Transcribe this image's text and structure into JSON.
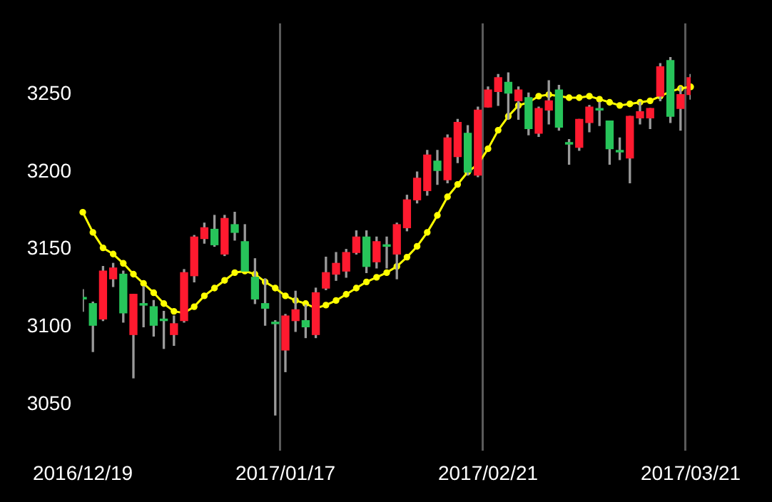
{
  "chart_data": {
    "type": "candlestick",
    "categories": [
      "2016/12/19",
      null,
      null,
      null,
      null,
      null,
      null,
      null,
      null,
      null,
      null,
      null,
      null,
      null,
      null,
      null,
      null,
      null,
      null,
      null,
      "2017/01/17",
      null,
      null,
      null,
      null,
      null,
      null,
      null,
      null,
      null,
      null,
      null,
      null,
      null,
      null,
      null,
      null,
      null,
      null,
      null,
      "2017/02/21",
      null,
      null,
      null,
      null,
      null,
      null,
      null,
      null,
      null,
      null,
      null,
      null,
      null,
      null,
      null,
      null,
      null,
      null,
      null,
      "2017/03/21"
    ],
    "ohlc": [
      [
        3119,
        3124,
        3110,
        3118
      ],
      [
        3115,
        3116,
        3084,
        3101
      ],
      [
        3105,
        3139,
        3104,
        3136
      ],
      [
        3131,
        3141,
        3126,
        3138
      ],
      [
        3134,
        3136,
        3103,
        3109
      ],
      [
        3095,
        3121,
        3067,
        3121
      ],
      [
        3115,
        3126,
        3100,
        3114
      ],
      [
        3113,
        3117,
        3094,
        3101
      ],
      [
        3105,
        3110,
        3086,
        3104
      ],
      [
        3095,
        3107,
        3088,
        3102
      ],
      [
        3104,
        3137,
        3103,
        3135
      ],
      [
        3133,
        3159,
        3129,
        3158
      ],
      [
        3157,
        3167,
        3154,
        3164
      ],
      [
        3163,
        3172,
        3152,
        3153
      ],
      [
        3147,
        3172,
        3146,
        3170
      ],
      [
        3166,
        3174,
        3156,
        3161
      ],
      [
        3155,
        3166,
        3136,
        3136
      ],
      [
        3132,
        3144,
        3115,
        3118
      ],
      [
        3115,
        3131,
        3101,
        3112
      ],
      [
        3103,
        3104,
        3043,
        3102
      ],
      [
        3085,
        3108,
        3071,
        3107
      ],
      [
        3104,
        3123,
        3097,
        3111
      ],
      [
        3104,
        3114,
        3093,
        3100
      ],
      [
        3095,
        3125,
        3093,
        3122
      ],
      [
        3125,
        3145,
        3124,
        3135
      ],
      [
        3134,
        3148,
        3130,
        3141
      ],
      [
        3136,
        3150,
        3132,
        3148
      ],
      [
        3148,
        3162,
        3147,
        3158
      ],
      [
        3158,
        3162,
        3135,
        3139
      ],
      [
        3142,
        3158,
        3138,
        3155
      ],
      [
        3153,
        3158,
        3138,
        3152
      ],
      [
        3147,
        3167,
        3131,
        3166
      ],
      [
        3164,
        3185,
        3162,
        3182
      ],
      [
        3182,
        3200,
        3180,
        3196
      ],
      [
        3188,
        3214,
        3185,
        3211
      ],
      [
        3207,
        3214,
        3192,
        3201
      ],
      [
        3195,
        3224,
        3193,
        3222
      ],
      [
        3210,
        3234,
        3206,
        3232
      ],
      [
        3225,
        3230,
        3198,
        3200
      ],
      [
        3198,
        3242,
        3197,
        3240
      ],
      [
        3242,
        3255,
        3242,
        3253
      ],
      [
        3252,
        3263,
        3243,
        3261
      ],
      [
        3258,
        3264,
        3234,
        3251
      ],
      [
        3246,
        3255,
        3234,
        3253
      ],
      [
        3248,
        3251,
        3224,
        3228
      ],
      [
        3225,
        3242,
        3223,
        3241
      ],
      [
        3240,
        3259,
        3231,
        3246
      ],
      [
        3253,
        3256,
        3227,
        3229
      ],
      [
        3219,
        3221,
        3205,
        3218
      ],
      [
        3216,
        3234,
        3214,
        3234
      ],
      [
        3232,
        3243,
        3226,
        3242
      ],
      [
        3241,
        3245,
        3230,
        3240
      ],
      [
        3233,
        3233,
        3205,
        3215
      ],
      [
        3214,
        3222,
        3208,
        3213
      ],
      [
        3209,
        3236,
        3193,
        3236
      ],
      [
        3235,
        3245,
        3231,
        3239
      ],
      [
        3235,
        3241,
        3228,
        3241
      ],
      [
        3249,
        3270,
        3246,
        3268
      ],
      [
        3272,
        3274,
        3232,
        3236
      ],
      [
        3241,
        3255,
        3227,
        3250
      ],
      [
        3250,
        3263,
        3247,
        3261
      ]
    ],
    "colors": [
      "#27c45a",
      "#27c45a",
      "#ff1a2f",
      "#ff1a2f",
      "#27c45a",
      "#ff1a2f",
      "#27c45a",
      "#27c45a",
      "#27c45a",
      "#ff1a2f",
      "#ff1a2f",
      "#ff1a2f",
      "#ff1a2f",
      "#27c45a",
      "#ff1a2f",
      "#27c45a",
      "#27c45a",
      "#27c45a",
      "#27c45a",
      "#27c45a",
      "#ff1a2f",
      "#ff1a2f",
      "#27c45a",
      "#ff1a2f",
      "#ff1a2f",
      "#ff1a2f",
      "#ff1a2f",
      "#ff1a2f",
      "#27c45a",
      "#ff1a2f",
      "#27c45a",
      "#ff1a2f",
      "#ff1a2f",
      "#ff1a2f",
      "#ff1a2f",
      "#27c45a",
      "#ff1a2f",
      "#ff1a2f",
      "#27c45a",
      "#ff1a2f",
      "#ff1a2f",
      "#ff1a2f",
      "#27c45a",
      "#ff1a2f",
      "#27c45a",
      "#ff1a2f",
      "#ff1a2f",
      "#27c45a",
      "#27c45a",
      "#ff1a2f",
      "#ff1a2f",
      "#27c45a",
      "#27c45a",
      "#27c45a",
      "#ff1a2f",
      "#ff1a2f",
      "#ff1a2f",
      "#ff1a2f",
      "#27c45a",
      "#ff1a2f",
      "#ff1a2f"
    ],
    "series": [
      {
        "type": "line",
        "color": "#ffff00",
        "values": [
          3174,
          3161,
          3151,
          3147,
          3141,
          3134,
          3128,
          3122,
          3115,
          3110,
          3109,
          3113,
          3120,
          3125,
          3130,
          3135,
          3136,
          3134,
          3129,
          3125,
          3120,
          3117,
          3115,
          3112,
          3114,
          3117,
          3121,
          3125,
          3129,
          3132,
          3135,
          3139,
          3145,
          3152,
          3161,
          3172,
          3184,
          3192,
          3200,
          3205,
          3215,
          3227,
          3236,
          3243,
          3245,
          3249,
          3250,
          3249,
          3248,
          3248,
          3249,
          3247,
          3245,
          3243,
          3244,
          3245,
          3246,
          3249,
          3252,
          3254,
          3255
        ]
      }
    ],
    "marker": "circle",
    "ylim": [
      3020,
      3296
    ],
    "yticks": [
      3050,
      3100,
      3150,
      3200,
      3250
    ],
    "grid": "x",
    "legend": false
  }
}
